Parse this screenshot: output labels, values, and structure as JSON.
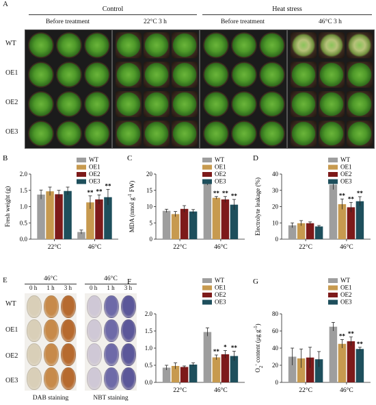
{
  "panel_A": {
    "label": "A",
    "group_control": "Control",
    "group_heat": "Heat stress",
    "col_labels": [
      "Before treatment",
      "22°C  3 h",
      "Before treatment",
      "46°C  3 h"
    ],
    "row_labels": [
      "WT",
      "OE1",
      "OE2",
      "OE3"
    ]
  },
  "panel_E": {
    "label": "E",
    "temp_left": "46°C",
    "temp_right": "46°C",
    "times_left": [
      "0 h",
      "1 h",
      "3 h"
    ],
    "times_right": [
      "0 h",
      "1 h",
      "3 h"
    ],
    "row_labels": [
      "WT",
      "OE1",
      "OE2",
      "OE3"
    ],
    "stain_left": "DAB staining",
    "stain_right": "NBT staining"
  },
  "colors": {
    "WT": "#9e9e9e",
    "OE1": "#c79a4f",
    "OE2": "#7d1a1a",
    "OE3": "#1e4f5c"
  },
  "chart_data": [
    {
      "id": "B",
      "type": "bar",
      "label": "B",
      "categories": [
        "22°C",
        "46°C"
      ],
      "ylabel": "Fresh weight (g)",
      "ylim": [
        0,
        2.0
      ],
      "yticks": [
        0.0,
        0.5,
        1.0,
        1.5,
        2.0
      ],
      "yticklabels": [
        "0.0",
        "0.5",
        "1.0",
        "1.5",
        "2.0"
      ],
      "series": [
        {
          "name": "WT",
          "values": [
            1.37,
            0.22
          ],
          "err": [
            0.14,
            0.06
          ],
          "sig": [
            "",
            ""
          ]
        },
        {
          "name": "OE1",
          "values": [
            1.47,
            1.13
          ],
          "err": [
            0.13,
            0.2
          ],
          "sig": [
            "",
            "**"
          ]
        },
        {
          "name": "OE2",
          "values": [
            1.38,
            1.22
          ],
          "err": [
            0.12,
            0.14
          ],
          "sig": [
            "",
            "**"
          ]
        },
        {
          "name": "OE3",
          "values": [
            1.48,
            1.29
          ],
          "err": [
            0.12,
            0.24
          ],
          "sig": [
            "",
            "**"
          ]
        }
      ]
    },
    {
      "id": "C",
      "type": "bar",
      "label": "C",
      "categories": [
        "22°C",
        "46°C"
      ],
      "ylabel": "MDA (nmol g-1 FW)",
      "ylim": [
        0,
        20
      ],
      "yticks": [
        0,
        5,
        10,
        15,
        20
      ],
      "yticklabels": [
        "0",
        "5",
        "10",
        "15",
        "20"
      ],
      "series": [
        {
          "name": "WT",
          "values": [
            8.7,
            17.4
          ],
          "err": [
            0.5,
            0.8
          ],
          "sig": [
            "",
            ""
          ]
        },
        {
          "name": "OE1",
          "values": [
            7.7,
            12.7
          ],
          "err": [
            0.8,
            0.4
          ],
          "sig": [
            "",
            "**"
          ]
        },
        {
          "name": "OE2",
          "values": [
            9.3,
            12.2
          ],
          "err": [
            1.0,
            0.9
          ],
          "sig": [
            "",
            "**"
          ]
        },
        {
          "name": "OE3",
          "values": [
            8.5,
            10.6
          ],
          "err": [
            0.6,
            1.6
          ],
          "sig": [
            "",
            "**"
          ]
        }
      ]
    },
    {
      "id": "D",
      "type": "bar",
      "label": "D",
      "categories": [
        "22°C",
        "46°C"
      ],
      "ylabel": "Electrolyte leakage (%)",
      "ylim": [
        0,
        40
      ],
      "yticks": [
        0,
        10,
        20,
        30,
        40
      ],
      "yticklabels": [
        "0",
        "10",
        "20",
        "30",
        "40"
      ],
      "series": [
        {
          "name": "WT",
          "values": [
            8.5,
            33.5
          ],
          "err": [
            1.5,
            3.0
          ],
          "sig": [
            "",
            ""
          ]
        },
        {
          "name": "OE1",
          "values": [
            9.8,
            21.5
          ],
          "err": [
            1.6,
            3.2
          ],
          "sig": [
            "",
            "**"
          ]
        },
        {
          "name": "OE2",
          "values": [
            9.8,
            19.6
          ],
          "err": [
            0.8,
            3.0
          ],
          "sig": [
            "",
            "**"
          ]
        },
        {
          "name": "OE3",
          "values": [
            7.8,
            23.3
          ],
          "err": [
            0.6,
            2.8
          ],
          "sig": [
            "",
            "**"
          ]
        }
      ]
    },
    {
      "id": "F",
      "type": "bar",
      "label": "F",
      "categories": [
        "22°C",
        "46°C"
      ],
      "ylabel": "H2O2 content (μmol g-1 FW)",
      "ylim": [
        0,
        2.0
      ],
      "yticks": [
        0.0,
        0.5,
        1.0,
        1.5,
        2.0
      ],
      "yticklabels": [
        "0.0",
        "0.5",
        "1.0",
        "1.5",
        "2.0"
      ],
      "series": [
        {
          "name": "WT",
          "values": [
            0.43,
            1.47
          ],
          "err": [
            0.07,
            0.12
          ],
          "sig": [
            "",
            ""
          ]
        },
        {
          "name": "OE1",
          "values": [
            0.48,
            0.73
          ],
          "err": [
            0.09,
            0.07
          ],
          "sig": [
            "",
            "**"
          ]
        },
        {
          "name": "OE2",
          "values": [
            0.45,
            0.82
          ],
          "err": [
            0.03,
            0.11
          ],
          "sig": [
            "",
            "*"
          ]
        },
        {
          "name": "OE3",
          "values": [
            0.52,
            0.77
          ],
          "err": [
            0.05,
            0.14
          ],
          "sig": [
            "",
            "**"
          ]
        }
      ]
    },
    {
      "id": "G",
      "type": "bar",
      "label": "G",
      "categories": [
        "22°C",
        "46°C"
      ],
      "ylabel": "O2- content (μg g-1)",
      "ylim": [
        0,
        80
      ],
      "yticks": [
        0,
        20,
        40,
        60,
        80
      ],
      "yticklabels": [
        "0",
        "20",
        "40",
        "60",
        "80"
      ],
      "series": [
        {
          "name": "WT",
          "values": [
            30,
            65
          ],
          "err": [
            10,
            5
          ],
          "sig": [
            "",
            ""
          ]
        },
        {
          "name": "OE1",
          "values": [
            28,
            45
          ],
          "err": [
            11,
            5
          ],
          "sig": [
            "",
            "**"
          ]
        },
        {
          "name": "OE2",
          "values": [
            29,
            48
          ],
          "err": [
            12,
            5
          ],
          "sig": [
            "",
            "**"
          ]
        },
        {
          "name": "OE3",
          "values": [
            27,
            39
          ],
          "err": [
            9,
            2
          ],
          "sig": [
            "",
            "**"
          ]
        }
      ]
    }
  ]
}
